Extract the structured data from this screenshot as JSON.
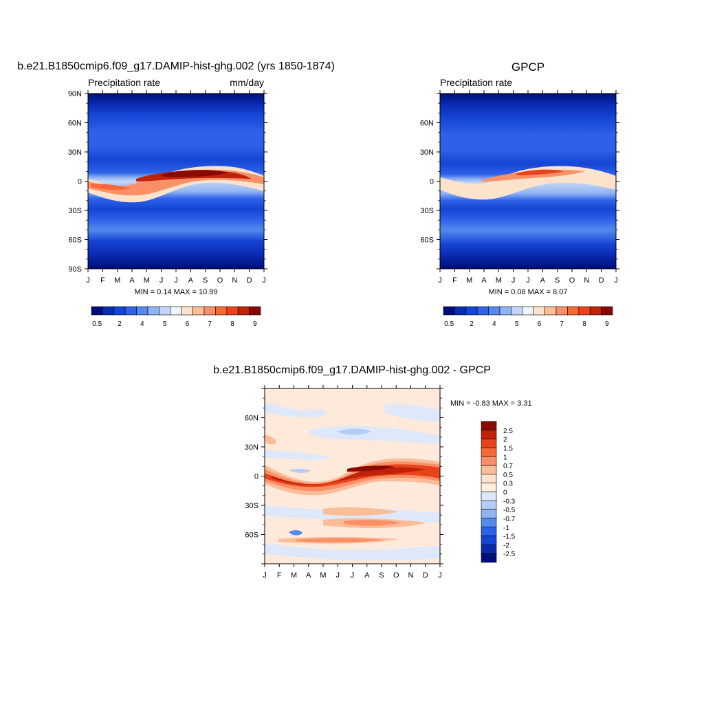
{
  "panels": [
    {
      "title": "b.e21.B1850cmip6.f09_g17.DAMIP-hist-ghg.002 (yrs 1850-1874)",
      "left_label": "Precipitation rate",
      "right_label": "mm/day",
      "y_ticks": [
        "90N",
        "60N",
        "30N",
        "0",
        "30S",
        "60S",
        "90S"
      ],
      "x_ticks": [
        "J",
        "F",
        "M",
        "A",
        "M",
        "J",
        "J",
        "A",
        "S",
        "O",
        "N",
        "D",
        "J"
      ],
      "stats": "MIN =   0.14 MAX =  10.99"
    },
    {
      "title": "GPCP",
      "left_label": "Precipitation rate",
      "right_label": "",
      "y_ticks": [
        "",
        "60N",
        "30N",
        "0",
        "30S",
        "60S",
        ""
      ],
      "x_ticks": [
        "J",
        "F",
        "M",
        "A",
        "M",
        "J",
        "J",
        "A",
        "S",
        "O",
        "N",
        "D",
        "J"
      ],
      "stats": "MIN =   0.08 MAX =   8.07"
    },
    {
      "title": "b.e21.B1850cmip6.f09_g17.DAMIP-hist-ghg.002 - GPCP",
      "left_label": "",
      "right_label": "",
      "y_ticks": [
        "",
        "60N",
        "30N",
        "0",
        "30S",
        "60S",
        ""
      ],
      "x_ticks": [
        "J",
        "F",
        "M",
        "A",
        "M",
        "J",
        "J",
        "A",
        "S",
        "O",
        "N",
        "D",
        "J"
      ],
      "stats": "MIN =  -0.83 MAX =   3.31"
    }
  ],
  "colorbar_abs": {
    "labels": [
      "0.5",
      "2",
      "4",
      "5",
      "6",
      "7",
      "8",
      "9"
    ],
    "colors": [
      "#000e7a",
      "#0a2ab0",
      "#1545d4",
      "#2d62e8",
      "#5589ee",
      "#8fb3f3",
      "#c2d7f8",
      "#eef4fd",
      "#fde2cc",
      "#fbbc98",
      "#f99068",
      "#f76838",
      "#e8441c",
      "#bf2208",
      "#8a0a00"
    ]
  },
  "colorbar_diff": {
    "labels": [
      "2.5",
      "2",
      "1.5",
      "1",
      "0.7",
      "0.5",
      "0.3",
      "0",
      "-0.3",
      "-0.5",
      "-0.7",
      "-1",
      "-1.5",
      "-2",
      "-2.5"
    ],
    "colors": [
      "#8a0a00",
      "#bf2208",
      "#e8441c",
      "#f76838",
      "#f99068",
      "#fbbc98",
      "#fde2cc",
      "#ffeedd",
      "#dde9fb",
      "#b4cdf6",
      "#8fb3f3",
      "#5589ee",
      "#2d62e8",
      "#1545d4",
      "#0a2ab0",
      "#000e7a"
    ]
  },
  "chart_data": [
    {
      "type": "heatmap",
      "title": "b.e21.B1850cmip6.f09_g17.DAMIP-hist-ghg.002 (yrs 1850-1874)",
      "variable": "Precipitation rate",
      "units": "mm/day",
      "x_axis": "month",
      "y_axis": "latitude",
      "x_ticks": [
        "J",
        "F",
        "M",
        "A",
        "M",
        "J",
        "J",
        "A",
        "S",
        "O",
        "N",
        "D",
        "J"
      ],
      "y_ticks": [
        "90N",
        "60N",
        "30N",
        "0",
        "30S",
        "60S",
        "90S"
      ],
      "ylim": [
        -90,
        90
      ],
      "min": 0.14,
      "max": 10.99,
      "max_band": {
        "lat_start": -5,
        "lat_end": 8,
        "peak_month": "Aug",
        "peak_value": 10.5
      },
      "contour_levels": [
        0.5,
        1,
        2,
        3,
        4,
        4.5,
        5,
        5.5,
        6,
        6.5,
        7,
        8,
        8.5,
        9
      ]
    },
    {
      "type": "heatmap",
      "title": "GPCP",
      "variable": "Precipitation rate",
      "x_axis": "month",
      "y_axis": "latitude",
      "x_ticks": [
        "J",
        "F",
        "M",
        "A",
        "M",
        "J",
        "J",
        "A",
        "S",
        "O",
        "N",
        "D",
        "J"
      ],
      "y_ticks": [
        "60N",
        "30N",
        "0",
        "30S",
        "60S"
      ],
      "ylim": [
        -90,
        90
      ],
      "min": 0.08,
      "max": 8.07,
      "max_band": {
        "lat_start": -5,
        "lat_end": 8,
        "peak_month": "Aug",
        "peak_value": 8
      }
    },
    {
      "type": "heatmap",
      "title": "b.e21.B1850cmip6.f09_g17.DAMIP-hist-ghg.002 - GPCP",
      "x_axis": "month",
      "y_axis": "latitude",
      "x_ticks": [
        "J",
        "F",
        "M",
        "A",
        "M",
        "J",
        "J",
        "A",
        "S",
        "O",
        "N",
        "D",
        "J"
      ],
      "y_ticks": [
        "60N",
        "30N",
        "0",
        "30S",
        "60S"
      ],
      "ylim": [
        -90,
        90
      ],
      "min": -0.83,
      "max": 3.31,
      "contour_levels": [
        -2.5,
        -2,
        -1.5,
        -1,
        -0.7,
        -0.5,
        -0.3,
        0,
        0.3,
        0.5,
        0.7,
        1,
        1.5,
        2,
        2.5
      ]
    }
  ]
}
